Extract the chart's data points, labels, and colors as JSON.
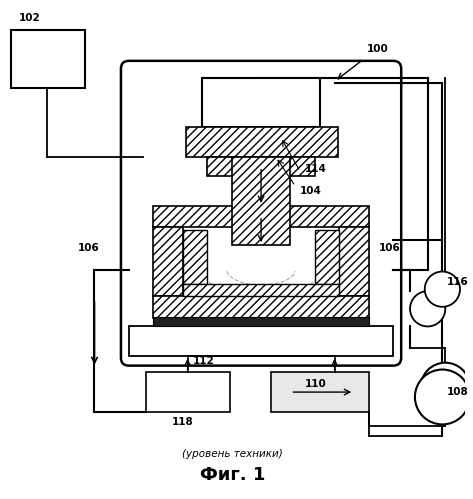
{
  "title_caption": "(уровень техники)",
  "title_fig": "Фиг. 1",
  "bg_color": "#ffffff",
  "line_color": "#000000"
}
